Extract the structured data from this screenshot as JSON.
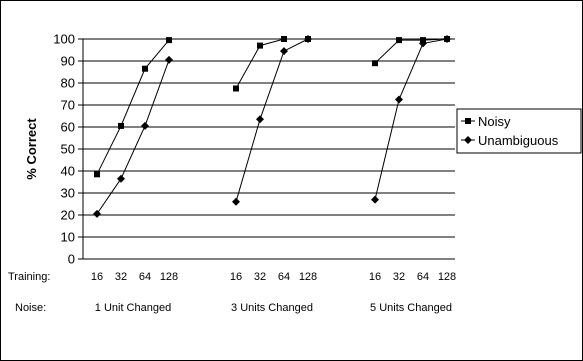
{
  "chart_data": {
    "type": "line",
    "title": "",
    "ylabel": "% Correct",
    "ylim": [
      0,
      100
    ],
    "yticks": [
      0,
      10,
      20,
      30,
      40,
      50,
      60,
      70,
      80,
      90,
      100
    ],
    "grid": true,
    "legend_position": "right",
    "row_labels": {
      "training": "Training:",
      "noise": "Noise:"
    },
    "groups": [
      {
        "label": "1 Unit Changed",
        "x": [
          "16",
          "32",
          "64",
          "128"
        ]
      },
      {
        "label": "3 Units Changed",
        "x": [
          "16",
          "32",
          "64",
          "128"
        ]
      },
      {
        "label": "5 Units Changed",
        "x": [
          "16",
          "32",
          "64",
          "128"
        ]
      }
    ],
    "series": [
      {
        "name": "Noisy",
        "marker": "square",
        "color": "#000000",
        "values": [
          [
            38.5,
            60.5,
            86.5,
            99.5
          ],
          [
            77.5,
            97,
            100,
            100
          ],
          [
            89,
            99.5,
            99.5,
            100
          ]
        ]
      },
      {
        "name": "Unambiguous",
        "marker": "diamond",
        "color": "#000000",
        "values": [
          [
            20.5,
            36.5,
            60.5,
            90.5
          ],
          [
            26,
            63.5,
            94.5,
            100
          ],
          [
            27,
            72.5,
            98,
            100
          ]
        ]
      }
    ]
  }
}
